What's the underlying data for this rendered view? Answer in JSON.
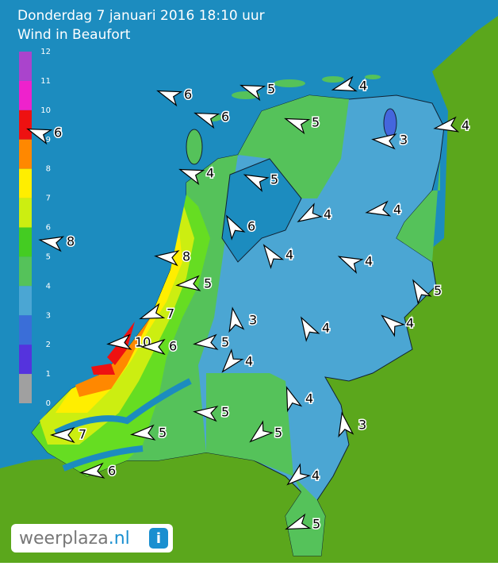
{
  "header": {
    "title": "Donderdag 7 januari 2016 18:10 uur",
    "subtitle": "Wind in Beaufort"
  },
  "legend": {
    "labels": [
      12,
      11,
      10,
      9,
      8,
      7,
      6,
      5,
      4,
      3,
      2,
      1,
      0
    ]
  },
  "wind": [
    6,
    5,
    4,
    6,
    5,
    4,
    3,
    6,
    4,
    5,
    4,
    4,
    6,
    8,
    8,
    4,
    4,
    5,
    5,
    7,
    3,
    4,
    4,
    10,
    6,
    5,
    4,
    4,
    3,
    5,
    5,
    7,
    5,
    6,
    4,
    5
  ],
  "logo": {
    "brand": "weerplaza",
    "tld": ".nl",
    "icon": "i"
  }
}
